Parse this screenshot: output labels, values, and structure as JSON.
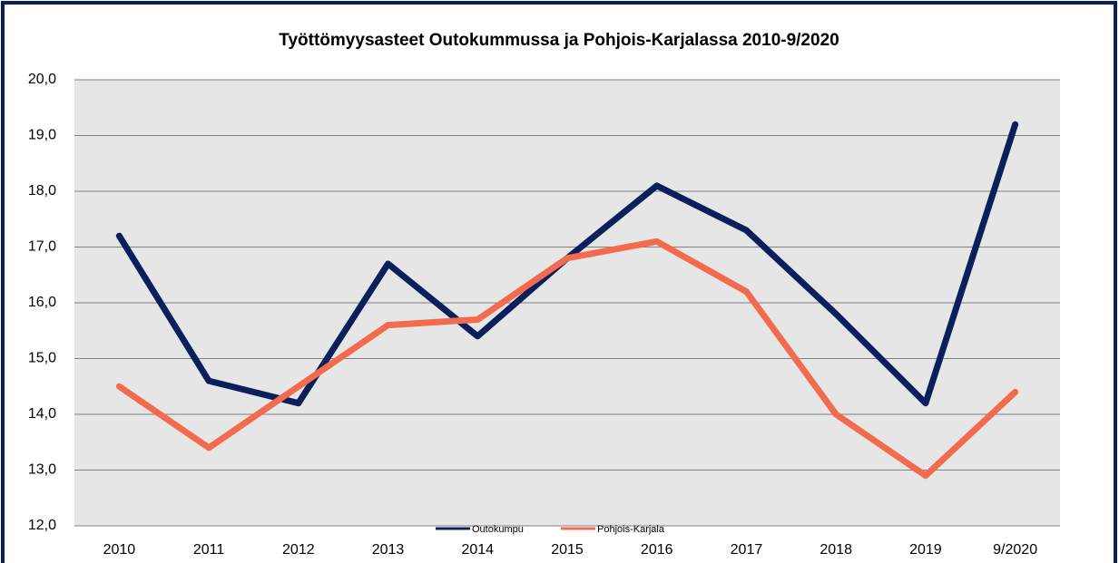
{
  "chart_data": {
    "type": "line",
    "title": "Työttömyysasteet Outokummussa ja Pohjois-Karjalassa 2010-9/2020",
    "categories": [
      "2010",
      "2011",
      "2012",
      "2013",
      "2014",
      "2015",
      "2016",
      "2017",
      "2018",
      "2019",
      "9/2020"
    ],
    "series": [
      {
        "name": "Outokumpu",
        "color": "#0b1f5c",
        "values": [
          17.2,
          14.6,
          14.2,
          16.7,
          15.4,
          16.8,
          18.1,
          17.3,
          15.8,
          14.2,
          19.2
        ]
      },
      {
        "name": "Pohjois-Karjala",
        "color": "#f26b4f",
        "values": [
          14.5,
          13.4,
          14.5,
          15.6,
          15.7,
          16.8,
          17.1,
          16.2,
          14.0,
          12.9,
          14.4
        ]
      }
    ],
    "ylim": [
      12,
      20
    ],
    "yticks": [
      {
        "value": 12,
        "label": "12,0"
      },
      {
        "value": 13,
        "label": "13,0"
      },
      {
        "value": 14,
        "label": "14,0"
      },
      {
        "value": 15,
        "label": "15,0"
      },
      {
        "value": 16,
        "label": "16,0"
      },
      {
        "value": 17,
        "label": "17,0"
      },
      {
        "value": 18,
        "label": "18,0"
      },
      {
        "value": 19,
        "label": "19,0"
      },
      {
        "value": 20,
        "label": "20,0"
      }
    ],
    "grid": true,
    "legend": "bottom"
  }
}
